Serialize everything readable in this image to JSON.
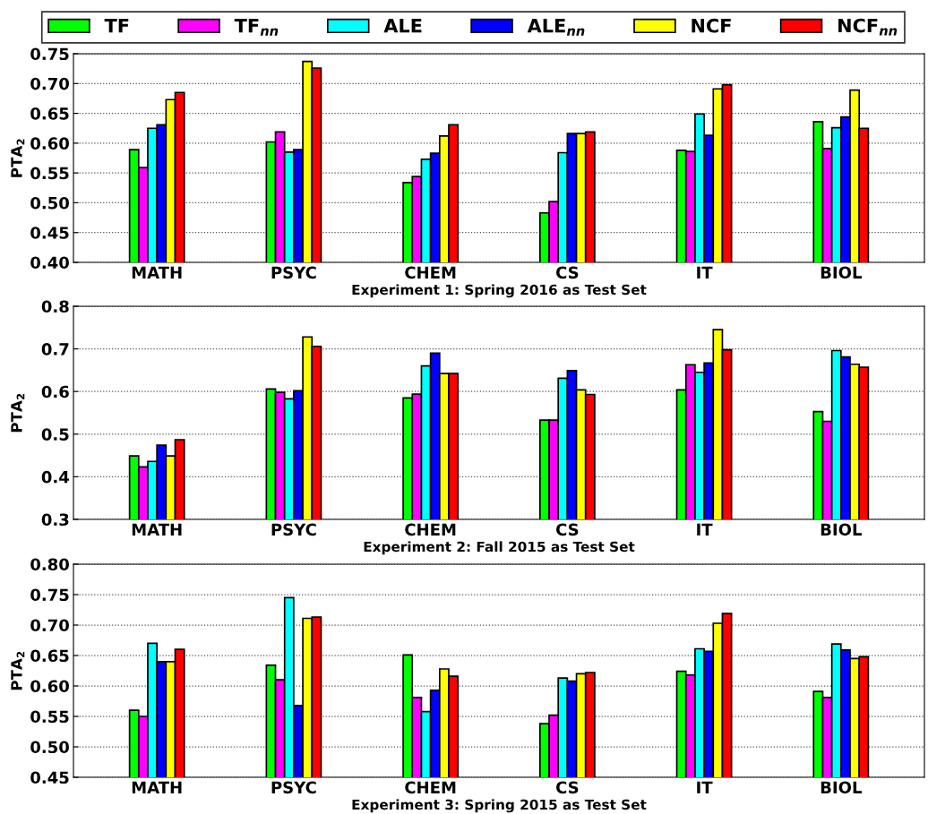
{
  "chart_data": [
    {
      "type": "bar",
      "xlabel": "Experiment 1: Spring 2016 as Test Set",
      "ylabel": "PTA$_{2}$",
      "categories": [
        "MATH",
        "PSYC",
        "CHEM",
        "CS",
        "IT",
        "BIOL"
      ],
      "ylim": [
        0.4,
        0.75
      ],
      "yticks": [
        {
          "value": 0.4,
          "label": "0.40"
        },
        {
          "value": 0.45,
          "label": "0.45"
        },
        {
          "value": 0.5,
          "label": "0.50"
        },
        {
          "value": 0.55,
          "label": "0.55"
        },
        {
          "value": 0.6,
          "label": "0.60"
        },
        {
          "value": 0.65,
          "label": "0.65"
        },
        {
          "value": 0.7,
          "label": "0.70"
        },
        {
          "value": 0.75,
          "label": "0.75"
        }
      ],
      "grid": "y",
      "legend": "top",
      "series": [
        {
          "name": "TF",
          "color": "#00ff00",
          "values": [
            0.589,
            0.602,
            0.534,
            0.483,
            0.588,
            0.636
          ]
        },
        {
          "name": "TF$_{nn}$",
          "color": "#ff00ff",
          "values": [
            0.559,
            0.619,
            0.544,
            0.502,
            0.586,
            0.591
          ]
        },
        {
          "name": "ALE",
          "color": "#00ffff",
          "values": [
            0.625,
            0.585,
            0.573,
            0.584,
            0.649,
            0.626
          ]
        },
        {
          "name": "ALE$_{nn}$",
          "color": "#0000ff",
          "values": [
            0.631,
            0.589,
            0.583,
            0.616,
            0.613,
            0.644
          ]
        },
        {
          "name": "NCF",
          "color": "#ffff00",
          "values": [
            0.673,
            0.737,
            0.612,
            0.616,
            0.691,
            0.689
          ]
        },
        {
          "name": "NCF$_{nn}$",
          "color": "#ff0000",
          "values": [
            0.685,
            0.726,
            0.631,
            0.619,
            0.698,
            0.625
          ]
        }
      ]
    },
    {
      "type": "bar",
      "xlabel": "Experiment 2: Fall 2015 as Test Set",
      "ylabel": "PTA$_{2}$",
      "categories": [
        "MATH",
        "PSYC",
        "CHEM",
        "CS",
        "IT",
        "BIOL"
      ],
      "ylim": [
        0.3,
        0.8
      ],
      "yticks": [
        0.3,
        0.4,
        0.5,
        0.6,
        0.7,
        0.8
      ],
      "grid": "y",
      "series": [
        {
          "color": "#00ff00",
          "values": [
            0.449,
            0.606,
            0.585,
            0.533,
            0.604,
            0.553
          ]
        },
        {
          "color": "#ff00ff",
          "values": [
            0.423,
            0.598,
            0.594,
            0.533,
            0.663,
            0.53
          ]
        },
        {
          "color": "#00ffff",
          "values": [
            0.436,
            0.583,
            0.66,
            0.631,
            0.645,
            0.696
          ]
        },
        {
          "color": "#0000ff",
          "values": [
            0.474,
            0.602,
            0.69,
            0.649,
            0.667,
            0.681
          ]
        },
        {
          "color": "#ffff00",
          "values": [
            0.449,
            0.728,
            0.642,
            0.604,
            0.745,
            0.664
          ]
        },
        {
          "color": "#ff0000",
          "values": [
            0.487,
            0.706,
            0.642,
            0.593,
            0.698,
            0.657
          ]
        }
      ]
    },
    {
      "type": "bar",
      "xlabel": "Experiment 3: Spring 2015 as Test Set",
      "ylabel": "PTA$_{2}$",
      "categories": [
        "MATH",
        "PSYC",
        "CHEM",
        "CS",
        "IT",
        "BIOL"
      ],
      "ylim": [
        0.45,
        0.8
      ],
      "yticks": [
        {
          "value": 0.45,
          "label": "0.45"
        },
        {
          "value": 0.5,
          "label": "0.50"
        },
        {
          "value": 0.55,
          "label": "0.55"
        },
        {
          "value": 0.6,
          "label": "0.60"
        },
        {
          "value": 0.65,
          "label": "0.65"
        },
        {
          "value": 0.7,
          "label": "0.70"
        },
        {
          "value": 0.75,
          "label": "0.75"
        },
        {
          "value": 0.8,
          "label": "0.80"
        }
      ],
      "grid": "y",
      "series": [
        {
          "color": "#00ff00",
          "values": [
            0.56,
            0.634,
            0.651,
            0.538,
            0.624,
            0.591
          ]
        },
        {
          "color": "#ff00ff",
          "values": [
            0.55,
            0.61,
            0.581,
            0.552,
            0.618,
            0.581
          ]
        },
        {
          "color": "#00ffff",
          "values": [
            0.67,
            0.745,
            0.558,
            0.613,
            0.661,
            0.669
          ]
        },
        {
          "color": "#0000ff",
          "values": [
            0.64,
            0.568,
            0.593,
            0.608,
            0.657,
            0.659
          ]
        },
        {
          "color": "#ffff00",
          "values": [
            0.64,
            0.711,
            0.628,
            0.62,
            0.703,
            0.645
          ]
        },
        {
          "color": "#ff0000",
          "values": [
            0.66,
            0.713,
            0.616,
            0.622,
            0.719,
            0.648
          ]
        }
      ]
    }
  ]
}
